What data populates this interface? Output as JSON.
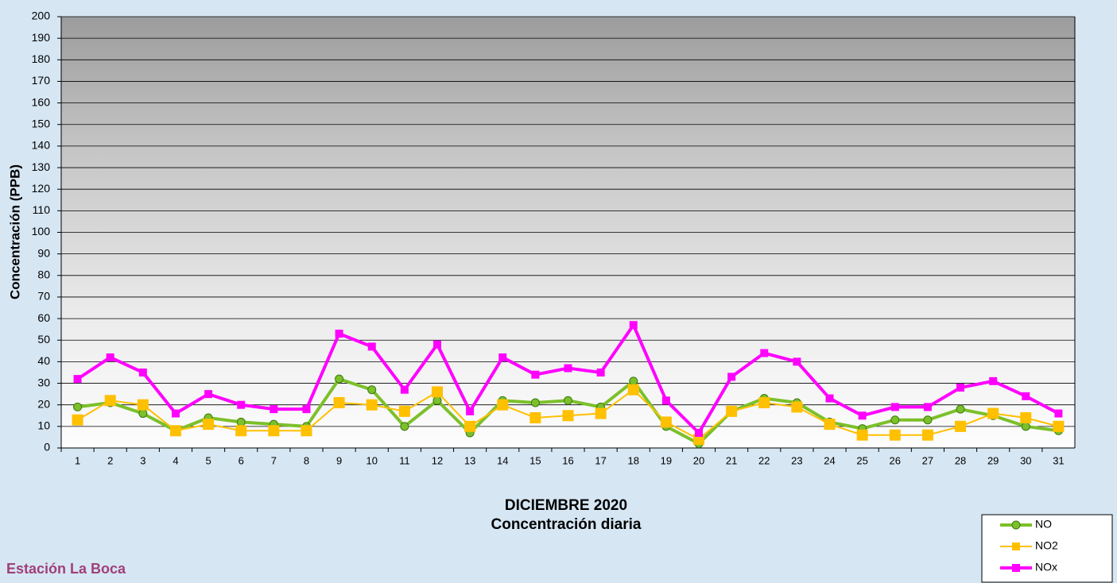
{
  "chart_data": {
    "type": "line",
    "title": "DICIEMBRE 2020",
    "subtitle": "Concentración diaria",
    "annotation": "Estación La Boca",
    "y_label": "Concentración  (PPB)",
    "categories": [
      "1",
      "2",
      "3",
      "4",
      "5",
      "6",
      "7",
      "8",
      "9",
      "10",
      "11",
      "12",
      "13",
      "14",
      "15",
      "16",
      "17",
      "18",
      "19",
      "20",
      "21",
      "22",
      "23",
      "24",
      "25",
      "26",
      "27",
      "28",
      "29",
      "30",
      "31"
    ],
    "series": [
      {
        "name": "NO",
        "color": "#7cc02a",
        "marker": "circle",
        "values": [
          19,
          21,
          16,
          8,
          14,
          12,
          11,
          10,
          32,
          27,
          10,
          22,
          7,
          22,
          21,
          22,
          19,
          31,
          10,
          2,
          17,
          23,
          21,
          12,
          9,
          13,
          13,
          18,
          15,
          10,
          8
        ]
      },
      {
        "name": "NO2",
        "color": "#ffc000",
        "marker": "square",
        "values": [
          13,
          22,
          20,
          8,
          11,
          8,
          8,
          8,
          21,
          20,
          17,
          26,
          10,
          20,
          14,
          15,
          16,
          27,
          12,
          4,
          17,
          21,
          19,
          11,
          6,
          6,
          6,
          10,
          16,
          14,
          10
        ]
      },
      {
        "name": "NOx",
        "color": "#ff00ff",
        "marker": "square",
        "values": [
          32,
          42,
          35,
          16,
          25,
          20,
          18,
          18,
          53,
          47,
          27,
          48,
          17,
          42,
          34,
          37,
          35,
          57,
          22,
          7,
          33,
          44,
          40,
          23,
          15,
          19,
          19,
          28,
          31,
          24,
          16
        ]
      }
    ],
    "ylim": [
      0,
      200
    ],
    "yticks": [
      0,
      10,
      20,
      30,
      40,
      50,
      60,
      70,
      80,
      90,
      100,
      110,
      120,
      130,
      140,
      150,
      160,
      170,
      180,
      190,
      200
    ],
    "grid": true,
    "legend": "bottom-right"
  }
}
